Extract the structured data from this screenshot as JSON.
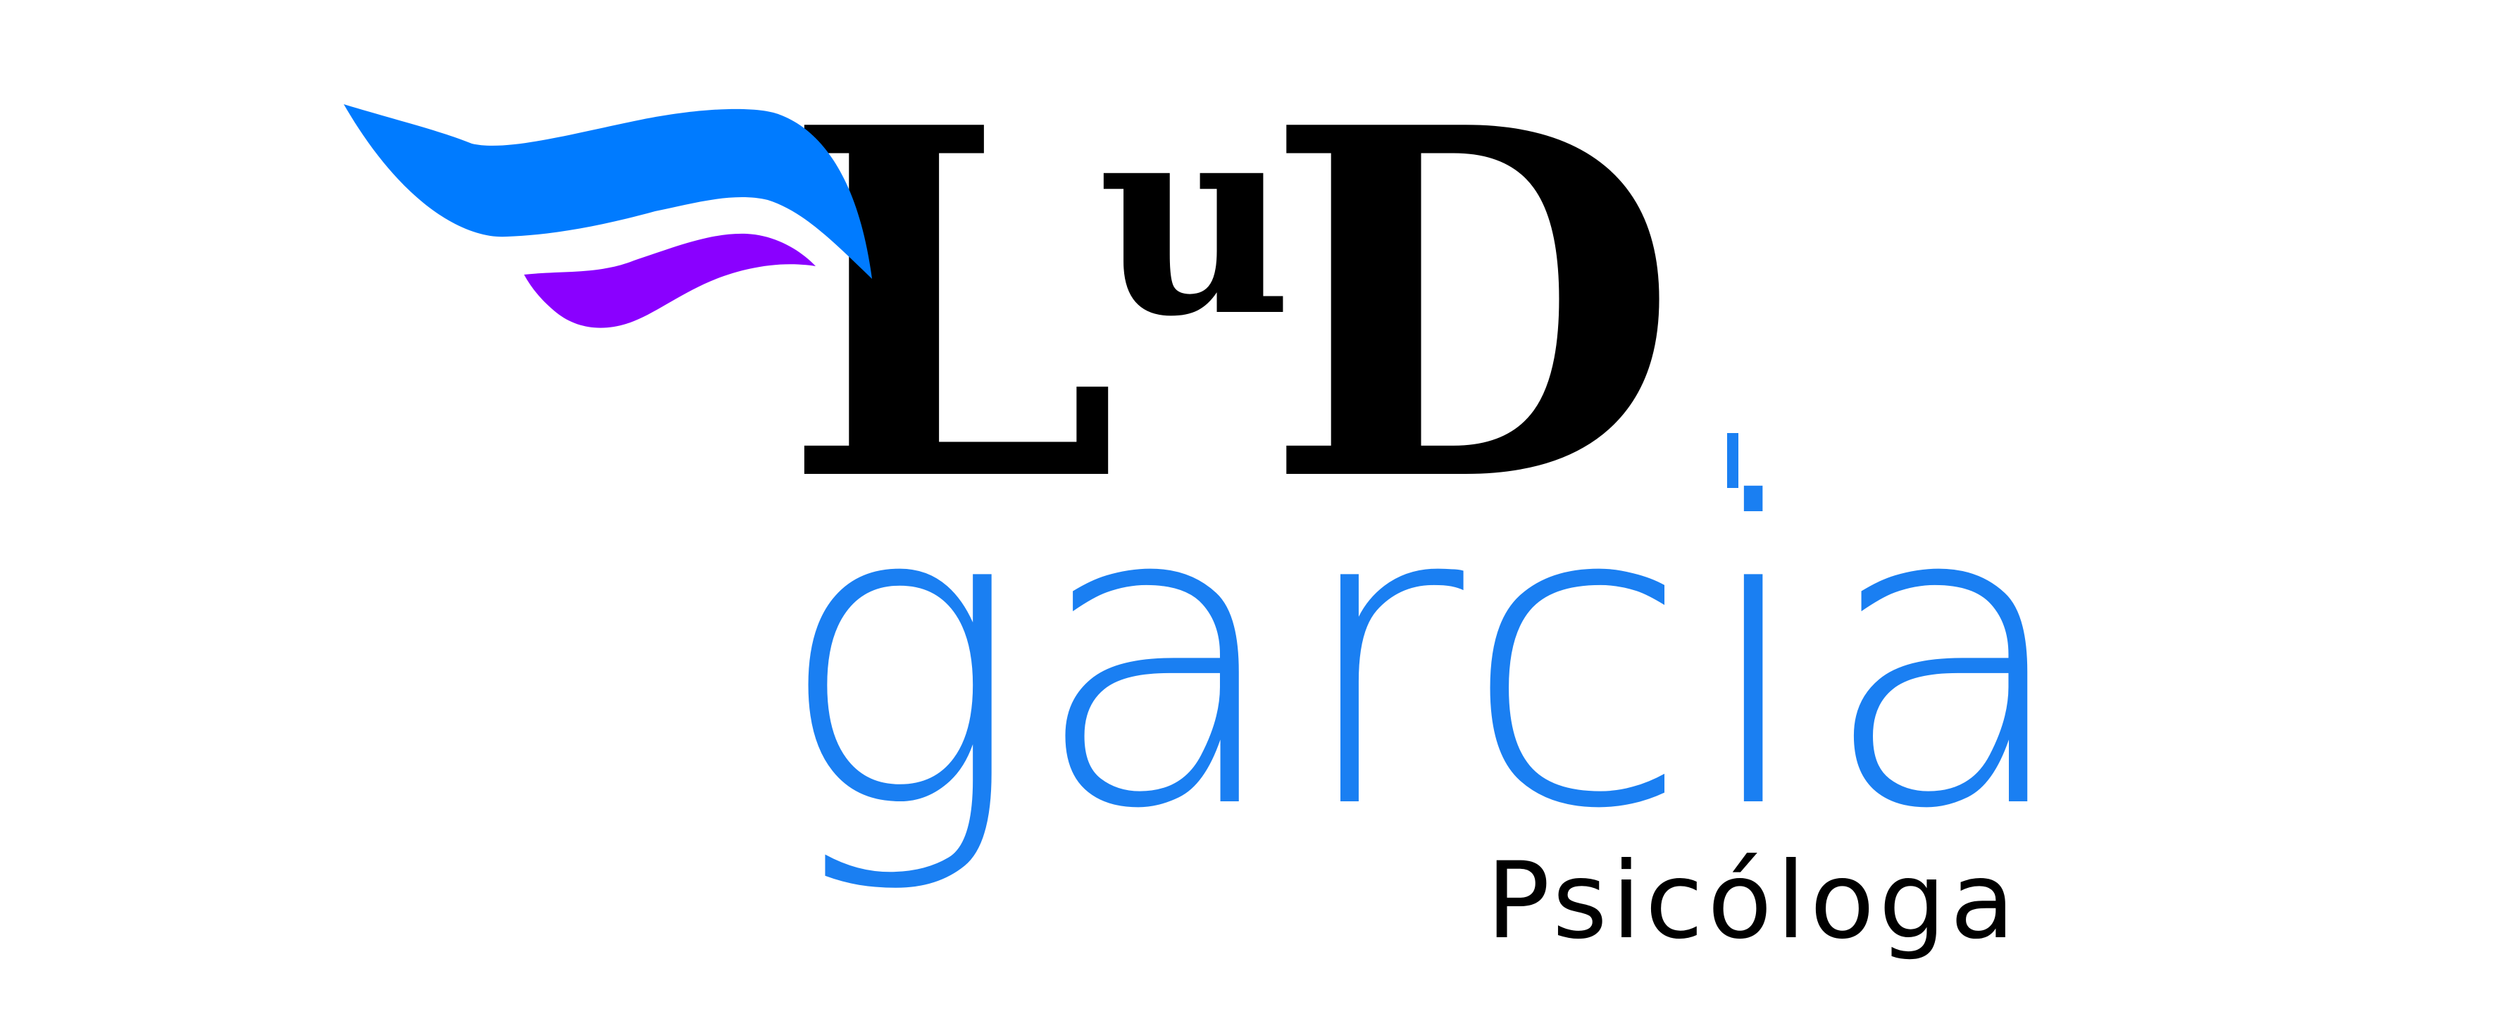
{
  "logo": {
    "line1_a": "L",
    "line1_small": "u",
    "line1_b": "D",
    "line2": "garcia",
    "tagline": "Psicóloga"
  },
  "colors": {
    "blue_wave": "#007bff",
    "purple_wave": "#8a00ff",
    "line1_color": "#000000",
    "line2_color": "#1a7ff2",
    "tagline_color": "#000000"
  },
  "icons": {
    "blue-wave": "swoosh-icon",
    "purple-wave": "swoosh-icon"
  }
}
